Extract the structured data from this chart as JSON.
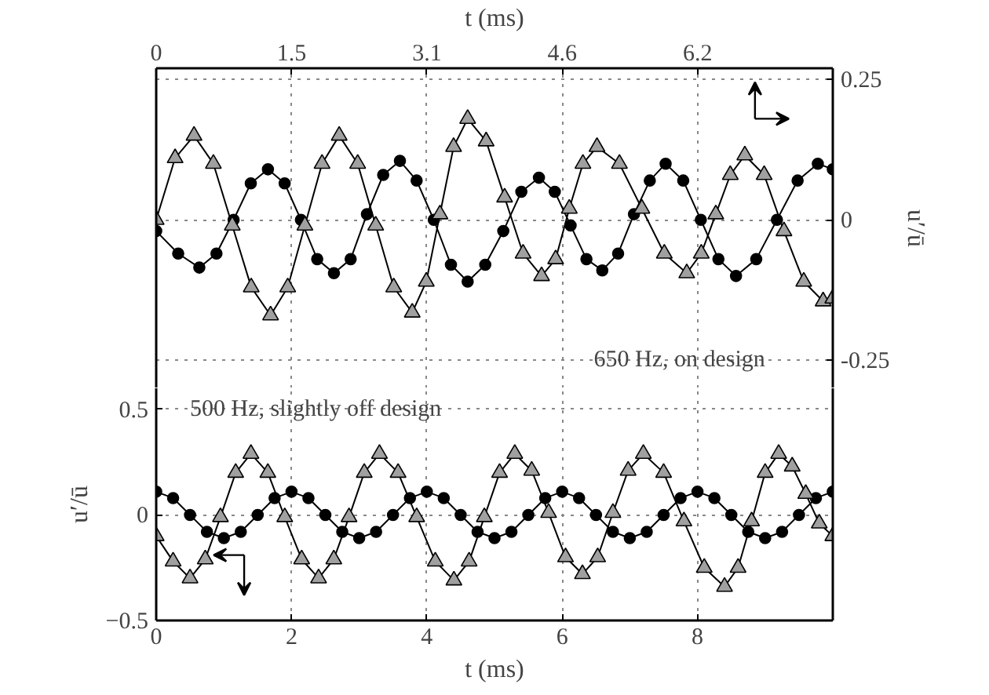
{
  "chart_data": [
    {
      "type": "line",
      "xlabel": "t (ms)",
      "ylabel": "u′/ū",
      "annotations": [
        "650 Hz, on design"
      ],
      "xlim": [
        0,
        7.69
      ],
      "xticks": [
        0,
        {
          "value": 1.538,
          "label": "1.5"
        },
        {
          "value": 3.077,
          "label": "3.1"
        },
        {
          "value": 4.615,
          "label": "4.6"
        },
        {
          "value": 6.154,
          "label": "6.2"
        }
      ],
      "ylim": [
        -0.3,
        0.27
      ],
      "yticks": [
        -0.25,
        0,
        0.25
      ],
      "grid": true,
      "line_style": "solid",
      "series": [
        {
          "marker": "circle",
          "color": "#000000",
          "x": [
            0,
            0.25,
            0.49,
            0.685,
            0.88,
            1.075,
            1.27,
            1.46,
            1.645,
            1.83,
            2.02,
            2.21,
            2.395,
            2.58,
            2.77,
            2.96,
            3.155,
            3.35,
            3.54,
            3.74,
            3.945,
            4.15,
            4.35,
            4.53,
            4.71,
            4.89,
            5.07,
            5.25,
            5.43,
            5.61,
            5.79,
            5.99,
            6.19,
            6.39,
            6.59,
            6.82,
            7.055,
            7.29,
            7.52,
            7.69
          ],
          "values": [
            -0.02,
            -0.06,
            -0.085,
            -0.06,
            0.0,
            0.065,
            0.09,
            0.065,
            0.0,
            -0.07,
            -0.095,
            -0.07,
            0.01,
            0.08,
            0.105,
            0.07,
            0.0,
            -0.08,
            -0.11,
            -0.08,
            -0.02,
            0.05,
            0.075,
            0.05,
            -0.01,
            -0.07,
            -0.09,
            -0.06,
            0.01,
            0.07,
            0.1,
            0.07,
            0.0,
            -0.07,
            -0.1,
            -0.07,
            0.0,
            0.07,
            0.1,
            0.09
          ]
        },
        {
          "marker": "triangle",
          "color": "#a0a0a0",
          "x": [
            0,
            0.215,
            0.43,
            0.65,
            0.865,
            1.08,
            1.3,
            1.495,
            1.69,
            1.885,
            2.08,
            2.29,
            2.495,
            2.7,
            2.91,
            3.07,
            3.225,
            3.38,
            3.54,
            3.75,
            3.96,
            4.17,
            4.38,
            4.54,
            4.695,
            4.85,
            5.01,
            5.265,
            5.52,
            5.775,
            6.03,
            6.195,
            6.36,
            6.525,
            6.69,
            6.91,
            7.135,
            7.36,
            7.58,
            7.69
          ],
          "values": [
            0.0,
            0.11,
            0.15,
            0.1,
            -0.01,
            -0.12,
            -0.17,
            -0.12,
            -0.01,
            0.1,
            0.15,
            0.1,
            -0.01,
            -0.12,
            -0.165,
            -0.11,
            0.01,
            0.13,
            0.18,
            0.14,
            0.04,
            -0.06,
            -0.1,
            -0.07,
            0.02,
            0.1,
            0.13,
            0.1,
            0.02,
            -0.06,
            -0.095,
            -0.06,
            0.01,
            0.08,
            0.115,
            0.08,
            -0.02,
            -0.11,
            -0.145,
            -0.14
          ]
        }
      ]
    },
    {
      "type": "line",
      "xlabel": "t (ms)",
      "ylabel": "u′/ū",
      "annotations": [
        "500 Hz, slightly off design"
      ],
      "xlim": [
        0,
        10
      ],
      "xticks": [
        0,
        2,
        4,
        6,
        8
      ],
      "ylim": [
        -0.5,
        0.6
      ],
      "yticks": [
        {
          "value": -0.5,
          "label": "−0.5"
        },
        0,
        0.5
      ],
      "grid": true,
      "line_style": "solid",
      "series": [
        {
          "marker": "circle",
          "color": "#000000",
          "x": [
            0,
            0.25,
            0.5,
            0.75,
            1,
            1.25,
            1.5,
            1.75,
            2,
            2.25,
            2.5,
            2.75,
            3,
            3.25,
            3.5,
            3.75,
            4,
            4.25,
            4.5,
            4.75,
            5,
            5.25,
            5.5,
            5.75,
            6,
            6.25,
            6.5,
            6.75,
            7,
            7.25,
            7.5,
            7.75,
            8,
            8.25,
            8.5,
            8.75,
            9,
            9.25,
            9.5,
            9.75,
            10
          ],
          "values": [
            0.11,
            0.08,
            0,
            -0.08,
            -0.11,
            -0.08,
            0,
            0.08,
            0.11,
            0.08,
            0,
            -0.08,
            -0.11,
            -0.08,
            0,
            0.08,
            0.11,
            0.08,
            0,
            -0.08,
            -0.11,
            -0.08,
            0,
            0.08,
            0.11,
            0.08,
            0,
            -0.08,
            -0.11,
            -0.08,
            0,
            0.08,
            0.11,
            0.08,
            0,
            -0.08,
            -0.11,
            -0.08,
            0,
            0.08,
            0.11
          ]
        },
        {
          "marker": "triangle",
          "color": "#a0a0a0",
          "x": [
            0,
            0.25,
            0.5,
            0.725,
            0.95,
            1.175,
            1.4,
            1.65,
            1.9,
            2.15,
            2.4,
            2.625,
            2.85,
            3.075,
            3.3,
            3.575,
            3.85,
            4.125,
            4.4,
            4.625,
            4.85,
            5.075,
            5.3,
            5.55,
            5.8,
            6.05,
            6.3,
            6.525,
            6.75,
            6.975,
            7.2,
            7.5,
            7.8,
            8.1,
            8.4,
            8.6,
            8.8,
            9.0,
            9.2,
            9.4,
            9.6,
            9.8,
            10
          ],
          "values": [
            -0.1,
            -0.22,
            -0.3,
            -0.21,
            -0.01,
            0.2,
            0.29,
            0.2,
            -0.01,
            -0.21,
            -0.3,
            -0.21,
            -0.01,
            0.2,
            0.29,
            0.2,
            -0.01,
            -0.22,
            -0.31,
            -0.22,
            -0.01,
            0.2,
            0.29,
            0.21,
            0.01,
            -0.2,
            -0.28,
            -0.2,
            0.01,
            0.21,
            0.29,
            0.2,
            -0.03,
            -0.25,
            -0.34,
            -0.25,
            -0.03,
            0.2,
            0.29,
            0.23,
            0.1,
            -0.04,
            -0.1
          ]
        }
      ]
    }
  ]
}
